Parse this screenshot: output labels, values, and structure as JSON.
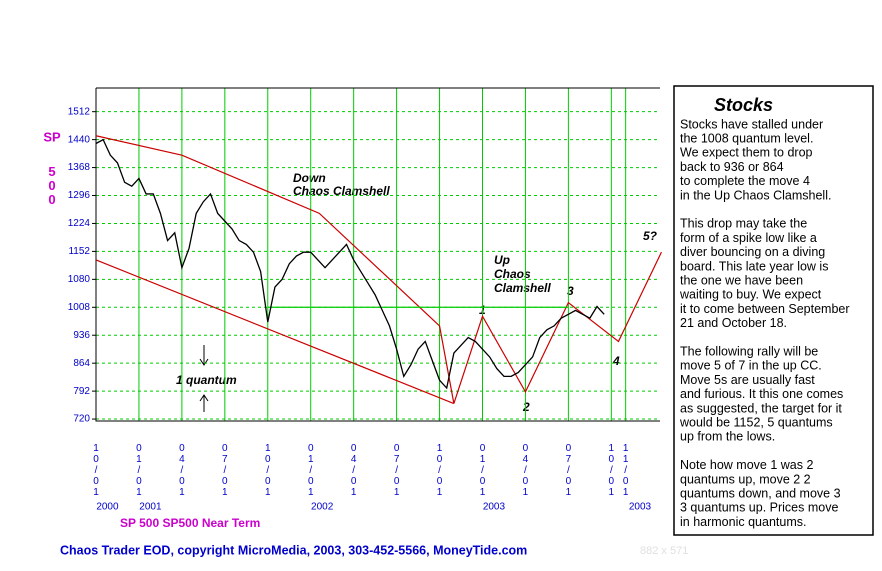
{
  "chart_data": {
    "type": "line",
    "ylabel": [
      "SP",
      "500"
    ],
    "legend": "SP 500 SP500 Near Term",
    "footer": "Chaos Trader EOD, copyright MicroMedia, 2003, 303-452-5566, MoneyTide.com",
    "size_note": "882 x 571",
    "xlim": [
      0,
      39.4
    ],
    "ylim": [
      715,
      1573
    ],
    "yticks": [
      720,
      792,
      864,
      936,
      1008,
      1080,
      1152,
      1224,
      1296,
      1368,
      1440,
      1512
    ],
    "xticks": [
      {
        "value": 0,
        "label": "10/01"
      },
      {
        "value": 3,
        "label": "01/01"
      },
      {
        "value": 6,
        "label": "04/01"
      },
      {
        "value": 9,
        "label": "07/01"
      },
      {
        "value": 12,
        "label": "10/01"
      },
      {
        "value": 15,
        "label": "01/01"
      },
      {
        "value": 18,
        "label": "04/01"
      },
      {
        "value": 21,
        "label": "07/01"
      },
      {
        "value": 24,
        "label": "10/01"
      },
      {
        "value": 27,
        "label": "01/01"
      },
      {
        "value": 30,
        "label": "04/01"
      },
      {
        "value": 33,
        "label": "07/01"
      },
      {
        "value": 36,
        "label": "10/01"
      },
      {
        "value": 37,
        "label": "11/01"
      }
    ],
    "year_ticks": [
      {
        "value": 0.8,
        "label": "2000"
      },
      {
        "value": 3.8,
        "label": "2001"
      },
      {
        "value": 15.8,
        "label": "2002"
      },
      {
        "value": 27.8,
        "label": "2003"
      },
      {
        "value": 38,
        "label": "2003"
      }
    ],
    "grid": true,
    "series": [
      {
        "name": "SP 500",
        "color": "#000000",
        "x": [
          0,
          0.5,
          1,
          1.5,
          2,
          2.5,
          3,
          3.5,
          4,
          4.5,
          5,
          5.5,
          6,
          6.5,
          7,
          7.5,
          8,
          8.5,
          9,
          9.5,
          10,
          10.5,
          11,
          11.5,
          12,
          12.5,
          13,
          13.5,
          14,
          14.5,
          15,
          15.5,
          16,
          16.5,
          17,
          17.5,
          18,
          18.5,
          19,
          19.5,
          20,
          20.5,
          21,
          21.5,
          22,
          22.5,
          23,
          23.5,
          24,
          24.5,
          25,
          25.5,
          26,
          26.5,
          27,
          27.5,
          28,
          28.5,
          29,
          29.5,
          30,
          30.5,
          31,
          31.5,
          32,
          32.5,
          33,
          33.5,
          34,
          34.5,
          35,
          35.5
        ],
        "values": [
          1430,
          1440,
          1400,
          1380,
          1330,
          1320,
          1340,
          1300,
          1300,
          1250,
          1180,
          1200,
          1110,
          1160,
          1250,
          1280,
          1300,
          1250,
          1230,
          1210,
          1180,
          1170,
          1150,
          1100,
          970,
          1060,
          1080,
          1120,
          1140,
          1150,
          1150,
          1130,
          1110,
          1130,
          1150,
          1170,
          1130,
          1100,
          1070,
          1040,
          1000,
          960,
          900,
          830,
          860,
          900,
          920,
          870,
          820,
          800,
          890,
          910,
          930,
          920,
          900,
          880,
          850,
          830,
          830,
          840,
          860,
          880,
          930,
          950,
          960,
          980,
          990,
          1000,
          990,
          980,
          1010,
          990
        ]
      }
    ],
    "trendlines": [
      {
        "color": "#cc0000",
        "x": [
          0,
          6,
          15.6,
          24,
          25
        ],
        "values": [
          1450,
          1400,
          1250,
          960,
          760
        ]
      },
      {
        "color": "#cc0000",
        "x": [
          0,
          25
        ],
        "values": [
          1130,
          760
        ]
      },
      {
        "color": "#cc0000",
        "x": [
          25,
          27,
          30,
          33,
          36.5,
          39.5
        ],
        "values": [
          760,
          985,
          790,
          1020,
          920,
          1150
        ]
      },
      {
        "color": "#00cc00",
        "x": [
          12,
          33
        ],
        "values": [
          1008,
          1008
        ]
      }
    ],
    "annotations": [
      "Down",
      "Chaos  Clamshell",
      "Up",
      "Chaos",
      "Clamshell",
      "1",
      "2",
      "3",
      "4",
      "5?",
      "1 quantum"
    ]
  },
  "panel": {
    "title": "Stocks",
    "paragraphs": [
      [
        "Stocks have stalled under",
        "the 1008 quantum level.",
        "We expect them to drop",
        "back to 936 or 864",
        "to complete the move 4",
        "in the Up Chaos Clamshell."
      ],
      [
        "This drop may take the",
        "form of a spike low like a",
        "diver bouncing on a diving",
        "board. This late year low is",
        "the one we have been",
        "waiting to buy. We expect",
        "it to come between September",
        "21 and October 18."
      ],
      [
        "The following rally will be",
        "move 5 of 7 in the up CC.",
        "Move 5s  are usually fast",
        "and furious. It this one comes",
        "as suggested, the target for it",
        "would be 1152, 5 quantums",
        "up from the lows."
      ],
      [
        "Note how move 1 was 2",
        "quantums up, move 2 2",
        "quantums down, and move 3",
        "3 quantums up. Prices move",
        "in harmonic quantums."
      ]
    ]
  }
}
